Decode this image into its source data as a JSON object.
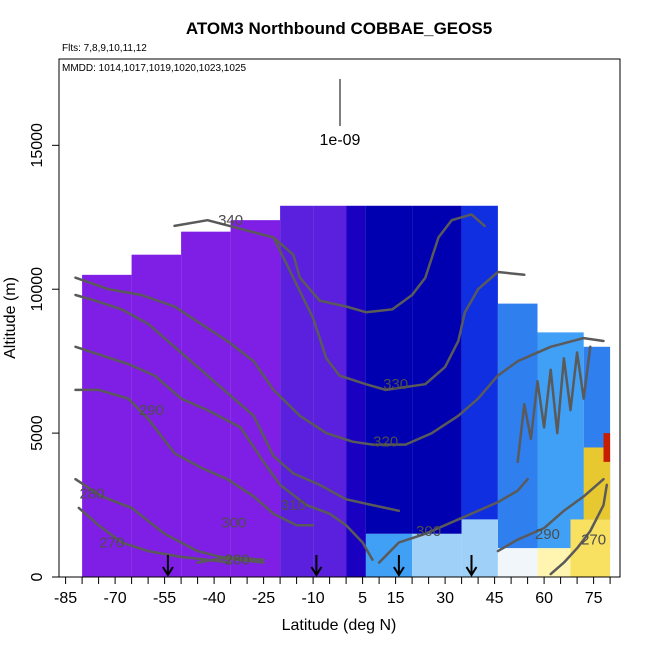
{
  "chart_data": {
    "type": "heatmap",
    "title": "ATOM3 Northbound COBBAE_GEOS5",
    "flights_note": "Flts: 7,8,9,10,11,12",
    "dates_note": "MMDD: 1014,1017,1019,1020,1023,1025",
    "xlabel": "Latitude (deg N)",
    "ylabel": "Altitude (m)",
    "xlim": [
      -87,
      83
    ],
    "ylim": [
      0,
      18000
    ],
    "x_ticks": [
      -85,
      -70,
      -55,
      -40,
      -25,
      -10,
      5,
      15,
      30,
      45,
      60,
      75
    ],
    "y_ticks": [
      0,
      5000,
      10000,
      15000
    ],
    "scale_bar_label": "1e-09",
    "grid": false,
    "colormap": [
      "#7f1fe6",
      "#5a20dd",
      "#1a00c0",
      "#0000b0",
      "#0f2fe0",
      "#2f7fef",
      "#3fa0f5",
      "#9fd0f8",
      "#f0f6fa",
      "#fff5b0",
      "#f8e060",
      "#e8c830",
      "#c81e00"
    ],
    "flight_markers_lat": [
      -54,
      -9,
      16,
      38
    ],
    "field_blocks": [
      {
        "lat": [
          -80,
          -65
        ],
        "alt": [
          0,
          10500
        ],
        "level": 0
      },
      {
        "lat": [
          -65,
          -50
        ],
        "alt": [
          0,
          11200
        ],
        "level": 0
      },
      {
        "lat": [
          -50,
          -35
        ],
        "alt": [
          0,
          12000
        ],
        "level": 0
      },
      {
        "lat": [
          -35,
          -20
        ],
        "alt": [
          0,
          12400
        ],
        "level": 0
      },
      {
        "lat": [
          -20,
          -10
        ],
        "alt": [
          0,
          12900
        ],
        "level": 1
      },
      {
        "lat": [
          -10,
          0
        ],
        "alt": [
          0,
          12900
        ],
        "level": 1
      },
      {
        "lat": [
          0,
          6
        ],
        "alt": [
          0,
          12900
        ],
        "level": 2
      },
      {
        "lat": [
          6,
          20
        ],
        "alt": [
          1500,
          12900
        ],
        "level": 3
      },
      {
        "lat": [
          20,
          35
        ],
        "alt": [
          1500,
          12900
        ],
        "level": 3
      },
      {
        "lat": [
          35,
          46
        ],
        "alt": [
          2000,
          12900
        ],
        "level": 4
      },
      {
        "lat": [
          46,
          58
        ],
        "alt": [
          1000,
          9500
        ],
        "level": 5
      },
      {
        "lat": [
          58,
          72
        ],
        "alt": [
          1000,
          8500
        ],
        "level": 6
      },
      {
        "lat": [
          72,
          80
        ],
        "alt": [
          1000,
          8000
        ],
        "level": 5
      },
      {
        "lat": [
          6,
          20
        ],
        "alt": [
          0,
          1500
        ],
        "level": 6
      },
      {
        "lat": [
          20,
          35
        ],
        "alt": [
          0,
          1500
        ],
        "level": 7
      },
      {
        "lat": [
          35,
          46
        ],
        "alt": [
          0,
          2000
        ],
        "level": 7
      },
      {
        "lat": [
          46,
          58
        ],
        "alt": [
          0,
          1000
        ],
        "level": 8
      },
      {
        "lat": [
          58,
          68
        ],
        "alt": [
          0,
          1000
        ],
        "level": 9
      },
      {
        "lat": [
          68,
          80
        ],
        "alt": [
          0,
          2000
        ],
        "level": 10
      },
      {
        "lat": [
          72,
          80
        ],
        "alt": [
          2000,
          4500
        ],
        "level": 11
      },
      {
        "lat": [
          78,
          80
        ],
        "alt": [
          4000,
          5000
        ],
        "level": 12
      }
    ],
    "contours": [
      {
        "label": "270",
        "label_at": [
          -71,
          1200
        ],
        "points": [
          [
            -81,
            2400
          ],
          [
            -75,
            1800
          ],
          [
            -68,
            1200
          ],
          [
            -60,
            900
          ],
          [
            -50,
            700
          ],
          [
            -42,
            600
          ],
          [
            -35,
            500
          ]
        ]
      },
      {
        "label": "280",
        "label_at": [
          -77,
          2900
        ],
        "points": [
          [
            -82,
            3400
          ],
          [
            -74,
            2800
          ],
          [
            -65,
            2400
          ],
          [
            -55,
            1500
          ],
          [
            -45,
            900
          ],
          [
            -38,
            700
          ],
          [
            -25,
            600
          ]
        ]
      },
      {
        "label": "280",
        "label_at": [
          -33,
          600
        ],
        "points": [
          [
            -45,
            500
          ],
          [
            -38,
            650
          ],
          [
            -33,
            600
          ],
          [
            -25,
            500
          ]
        ]
      },
      {
        "label": "290",
        "label_at": [
          -59,
          5800
        ],
        "points": [
          [
            -82,
            6500
          ],
          [
            -75,
            6500
          ],
          [
            -66,
            6200
          ],
          [
            -60,
            5500
          ],
          [
            -52,
            4300
          ],
          [
            -44,
            3800
          ],
          [
            -36,
            3400
          ],
          [
            -28,
            2800
          ],
          [
            -22,
            2200
          ],
          [
            -15,
            1800
          ],
          [
            -10,
            1800
          ]
        ]
      },
      {
        "label": "300",
        "label_at": [
          -34,
          1900
        ],
        "points": [
          [
            -82,
            8000
          ],
          [
            -74,
            7700
          ],
          [
            -66,
            7400
          ],
          [
            -58,
            7000
          ],
          [
            -50,
            6200
          ],
          [
            -42,
            5800
          ],
          [
            -32,
            5200
          ],
          [
            -25,
            4000
          ],
          [
            -20,
            3200
          ],
          [
            -12,
            2500
          ],
          [
            -5,
            2200
          ],
          [
            0,
            1800
          ],
          [
            5,
            1200
          ],
          [
            8,
            600
          ]
        ]
      },
      {
        "label": "300",
        "label_at": [
          25,
          1600
        ],
        "points": [
          [
            10,
            500
          ],
          [
            16,
            1200
          ],
          [
            24,
            1500
          ],
          [
            32,
            1900
          ],
          [
            40,
            2300
          ],
          [
            46,
            2600
          ],
          [
            52,
            3000
          ],
          [
            55,
            3400
          ]
        ]
      },
      {
        "label": "310",
        "label_at": [
          -16,
          2500
        ],
        "points": [
          [
            -82,
            9800
          ],
          [
            -76,
            9600
          ],
          [
            -68,
            9300
          ],
          [
            -60,
            8800
          ],
          [
            -52,
            8000
          ],
          [
            -44,
            7200
          ],
          [
            -36,
            6400
          ],
          [
            -28,
            5600
          ],
          [
            -22,
            4200
          ],
          [
            -16,
            3600
          ],
          [
            -8,
            3200
          ],
          [
            0,
            2700
          ],
          [
            8,
            2500
          ],
          [
            16,
            2300
          ]
        ]
      },
      {
        "label": "320",
        "label_at": [
          12,
          4700
        ],
        "points": [
          [
            -82,
            10400
          ],
          [
            -72,
            10000
          ],
          [
            -62,
            9800
          ],
          [
            -52,
            9400
          ],
          [
            -44,
            8800
          ],
          [
            -36,
            8200
          ],
          [
            -28,
            7500
          ],
          [
            -22,
            6500
          ],
          [
            -14,
            5600
          ],
          [
            -6,
            5000
          ],
          [
            2,
            4700
          ],
          [
            8,
            4600
          ],
          [
            18,
            4600
          ],
          [
            26,
            5000
          ],
          [
            34,
            5600
          ],
          [
            40,
            6200
          ],
          [
            46,
            7000
          ],
          [
            52,
            7500
          ],
          [
            62,
            8000
          ],
          [
            72,
            8300
          ],
          [
            78,
            8200
          ]
        ]
      },
      {
        "label": "330",
        "label_at": [
          15,
          6700
        ],
        "points": [
          [
            -22,
            11800
          ],
          [
            -16,
            10400
          ],
          [
            -10,
            9000
          ],
          [
            -6,
            7600
          ],
          [
            -2,
            7000
          ],
          [
            6,
            6700
          ],
          [
            12,
            6500
          ],
          [
            24,
            6700
          ],
          [
            30,
            7300
          ],
          [
            34,
            8200
          ],
          [
            36,
            9200
          ],
          [
            40,
            10000
          ],
          [
            46,
            10600
          ],
          [
            54,
            10500
          ]
        ]
      },
      {
        "label": "340",
        "label_at": [
          -35,
          12400
        ],
        "points": [
          [
            -52,
            12200
          ],
          [
            -42,
            12400
          ],
          [
            -32,
            12100
          ],
          [
            -22,
            11800
          ],
          [
            -16,
            11200
          ],
          [
            -14,
            10400
          ],
          [
            -8,
            9600
          ],
          [
            0,
            9400
          ],
          [
            6,
            9200
          ],
          [
            14,
            9300
          ],
          [
            20,
            9800
          ],
          [
            24,
            10400
          ],
          [
            28,
            11800
          ],
          [
            32,
            12400
          ],
          [
            38,
            12600
          ],
          [
            42,
            12200
          ]
        ]
      },
      {
        "label": "290",
        "label_at": [
          61,
          1500
        ],
        "points": [
          [
            46,
            900
          ],
          [
            52,
            1300
          ],
          [
            60,
            1700
          ],
          [
            66,
            2300
          ],
          [
            72,
            2800
          ],
          [
            78,
            3400
          ]
        ]
      },
      {
        "label": "270",
        "label_at": [
          75,
          1300
        ],
        "points": [
          [
            62,
            100
          ],
          [
            66,
            500
          ],
          [
            70,
            1000
          ],
          [
            74,
            1600
          ],
          [
            78,
            2500
          ],
          [
            79,
            3200
          ]
        ]
      },
      {
        "label": "",
        "label_at": null,
        "points": [
          [
            52,
            4000
          ],
          [
            54,
            6000
          ],
          [
            56,
            4800
          ],
          [
            58,
            6800
          ],
          [
            60,
            5200
          ],
          [
            62,
            7200
          ],
          [
            64,
            5000
          ],
          [
            66,
            7600
          ],
          [
            68,
            5800
          ],
          [
            70,
            7800
          ],
          [
            72,
            6200
          ],
          [
            74,
            8000
          ]
        ]
      }
    ]
  }
}
